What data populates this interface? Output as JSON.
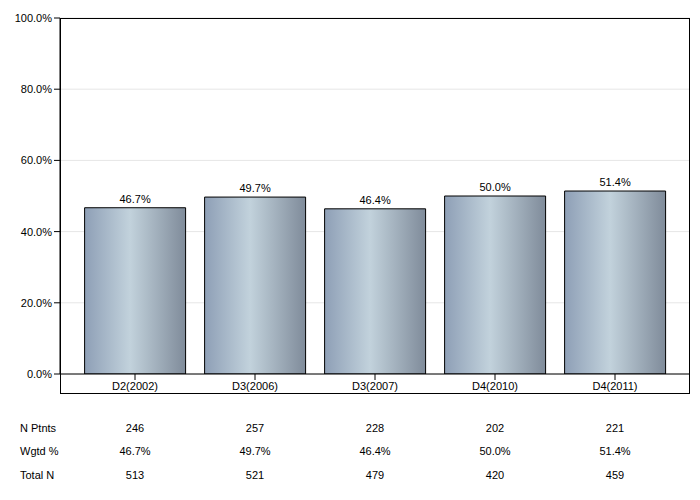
{
  "chart_data": {
    "type": "bar",
    "categories": [
      "D2(2002)",
      "D3(2006)",
      "D3(2007)",
      "D4(2010)",
      "D4(2011)"
    ],
    "values": [
      46.7,
      49.7,
      46.4,
      50.0,
      51.4
    ],
    "value_labels": [
      "46.7%",
      "49.7%",
      "46.4%",
      "50.0%",
      "51.4%"
    ],
    "data_labels": true,
    "color": "#c2d2dc",
    "ylim": [
      0,
      100
    ],
    "yticks": [
      {
        "value": 0,
        "label": "0.0%"
      },
      {
        "value": 20,
        "label": "20.0%"
      },
      {
        "value": 40,
        "label": "40.0%"
      },
      {
        "value": 60,
        "label": "60.0%"
      },
      {
        "value": 80,
        "label": "80.0%"
      },
      {
        "value": 100,
        "label": "100.0%"
      }
    ],
    "grid": true
  },
  "table": {
    "rows": [
      {
        "label": "N Ptnts",
        "values": [
          "246",
          "257",
          "228",
          "202",
          "221"
        ]
      },
      {
        "label": "Wgtd %",
        "values": [
          "46.7%",
          "49.7%",
          "46.4%",
          "50.0%",
          "51.4%"
        ]
      },
      {
        "label": "Total N",
        "values": [
          "513",
          "521",
          "479",
          "420",
          "459"
        ]
      }
    ]
  }
}
